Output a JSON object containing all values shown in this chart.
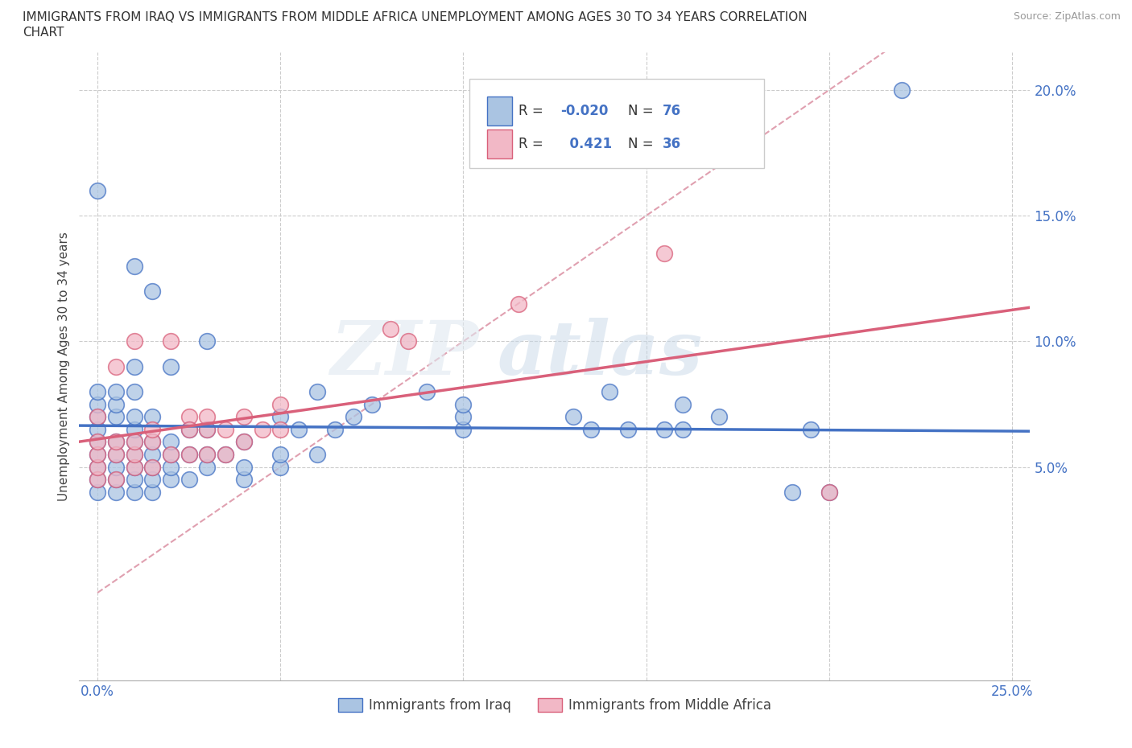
{
  "title_line1": "IMMIGRANTS FROM IRAQ VS IMMIGRANTS FROM MIDDLE AFRICA UNEMPLOYMENT AMONG AGES 30 TO 34 YEARS CORRELATION",
  "title_line2": "CHART",
  "source": "Source: ZipAtlas.com",
  "ylabel": "Unemployment Among Ages 30 to 34 years",
  "iraq_color": "#aac4e2",
  "iraq_color_dark": "#4472c4",
  "middle_africa_color": "#f2b8c6",
  "middle_africa_color_dark": "#d9607a",
  "refline_color": "#e8a0b0",
  "iraq_R": -0.02,
  "iraq_N": 76,
  "middle_africa_R": 0.421,
  "middle_africa_N": 36,
  "legend_iraq_label": "Immigrants from Iraq",
  "legend_middle_africa_label": "Immigrants from Middle Africa",
  "xlim": [
    -0.005,
    0.255
  ],
  "ylim": [
    -0.035,
    0.215
  ],
  "xtick_vals": [
    0.0,
    0.05,
    0.1,
    0.15,
    0.2,
    0.25
  ],
  "xticklabels": [
    "0.0%",
    "",
    "",
    "",
    "",
    "25.0%"
  ],
  "ytick_vals": [
    0.05,
    0.1,
    0.15,
    0.2
  ],
  "yticklabels": [
    "5.0%",
    "10.0%",
    "15.0%",
    "20.0%"
  ],
  "grid_color": "#cccccc",
  "background_color": "#ffffff",
  "iraq_x": [
    0.0,
    0.0,
    0.0,
    0.0,
    0.0,
    0.0,
    0.0,
    0.0,
    0.0,
    0.0,
    0.005,
    0.005,
    0.005,
    0.005,
    0.005,
    0.005,
    0.005,
    0.005,
    0.01,
    0.01,
    0.01,
    0.01,
    0.01,
    0.01,
    0.01,
    0.01,
    0.01,
    0.01,
    0.015,
    0.015,
    0.015,
    0.015,
    0.015,
    0.015,
    0.015,
    0.02,
    0.02,
    0.02,
    0.02,
    0.02,
    0.025,
    0.025,
    0.025,
    0.03,
    0.03,
    0.03,
    0.03,
    0.035,
    0.04,
    0.04,
    0.04,
    0.05,
    0.05,
    0.05,
    0.055,
    0.06,
    0.06,
    0.065,
    0.07,
    0.075,
    0.09,
    0.1,
    0.1,
    0.1,
    0.13,
    0.135,
    0.14,
    0.145,
    0.155,
    0.16,
    0.16,
    0.17,
    0.19,
    0.195,
    0.2,
    0.22
  ],
  "iraq_y": [
    0.04,
    0.045,
    0.05,
    0.055,
    0.06,
    0.065,
    0.07,
    0.075,
    0.08,
    0.16,
    0.04,
    0.045,
    0.05,
    0.055,
    0.06,
    0.07,
    0.075,
    0.08,
    0.04,
    0.045,
    0.05,
    0.055,
    0.06,
    0.065,
    0.07,
    0.08,
    0.09,
    0.13,
    0.04,
    0.045,
    0.05,
    0.055,
    0.06,
    0.07,
    0.12,
    0.045,
    0.05,
    0.055,
    0.06,
    0.09,
    0.045,
    0.055,
    0.065,
    0.05,
    0.055,
    0.065,
    0.1,
    0.055,
    0.045,
    0.05,
    0.06,
    0.05,
    0.055,
    0.07,
    0.065,
    0.055,
    0.08,
    0.065,
    0.07,
    0.075,
    0.08,
    0.065,
    0.07,
    0.075,
    0.07,
    0.065,
    0.08,
    0.065,
    0.065,
    0.075,
    0.065,
    0.07,
    0.04,
    0.065,
    0.04,
    0.2
  ],
  "middle_africa_x": [
    0.0,
    0.0,
    0.0,
    0.0,
    0.0,
    0.005,
    0.005,
    0.005,
    0.005,
    0.01,
    0.01,
    0.01,
    0.01,
    0.015,
    0.015,
    0.015,
    0.02,
    0.02,
    0.025,
    0.025,
    0.025,
    0.03,
    0.03,
    0.03,
    0.035,
    0.035,
    0.04,
    0.04,
    0.045,
    0.05,
    0.05,
    0.08,
    0.085,
    0.115,
    0.155,
    0.2
  ],
  "middle_africa_y": [
    0.045,
    0.05,
    0.055,
    0.06,
    0.07,
    0.045,
    0.055,
    0.06,
    0.09,
    0.05,
    0.055,
    0.06,
    0.1,
    0.05,
    0.06,
    0.065,
    0.055,
    0.1,
    0.055,
    0.07,
    0.065,
    0.055,
    0.065,
    0.07,
    0.055,
    0.065,
    0.06,
    0.07,
    0.065,
    0.065,
    0.075,
    0.105,
    0.1,
    0.115,
    0.135,
    0.04
  ]
}
